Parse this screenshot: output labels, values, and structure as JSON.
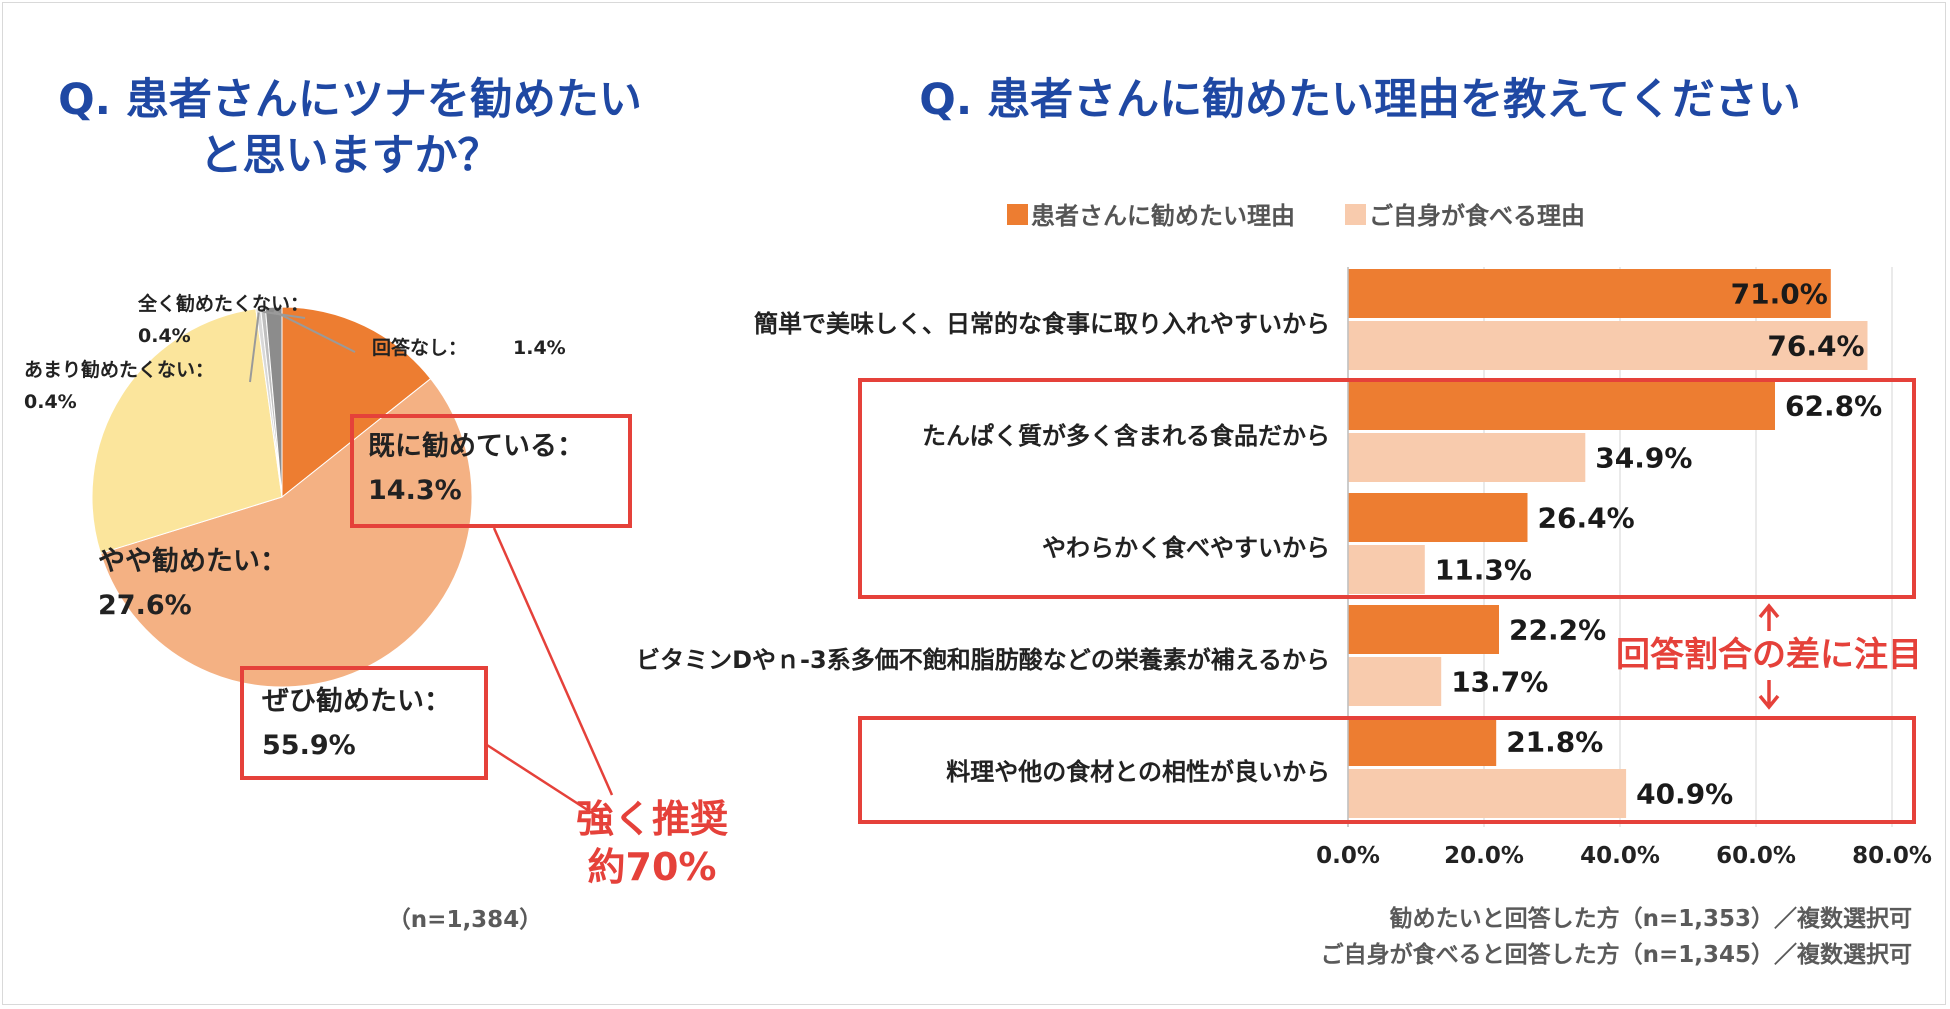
{
  "colors": {
    "title": "#1f48a3",
    "primary_bar": "#ed7d31",
    "secondary_bar": "#f8cbad",
    "highlight": "#e5413a",
    "pie_already": "#ed7d31",
    "pie_definitely": "#f4b183",
    "pie_somewhat": "#fbe59c",
    "pie_not_much": "#d9d9d9",
    "pie_not_at_all": "#bfbfbf",
    "pie_no_answer": "#8c8c8c"
  },
  "chart_data": [
    {
      "type": "pie",
      "title": "Q. 患者さんにツナを勧めたい\nと思いますか？",
      "title_lines": [
        "Q. 患者さんにツナを勧めたい",
        "と思いますか？"
      ],
      "slices": [
        {
          "name": "既に勧めている：",
          "value": 14.3,
          "value_label": "14.3%"
        },
        {
          "name": "ぜひ勧めたい：",
          "value": 55.9,
          "value_label": "55.9%"
        },
        {
          "name": "やや勧めたい：",
          "value": 27.6,
          "value_label": "27.6%"
        },
        {
          "name": "あまり勧めたくない：",
          "value": 0.4,
          "value_label": "0.4%"
        },
        {
          "name": "全く勧めたくない：",
          "value": 0.4,
          "value_label": "0.4%"
        },
        {
          "name": "回答なし：",
          "value": 1.4,
          "value_label": "1.4%"
        }
      ],
      "annotation_lines": [
        "強く推奨",
        "約70%"
      ],
      "sample_note": "（n=1,384）"
    },
    {
      "type": "bar",
      "orientation": "horizontal",
      "title": "Q. 患者さんに勧めたい理由を教えてください",
      "categories": [
        "簡単で美味しく、日常的な食事に取り入れやすいから",
        "たんぱく質が多く含まれる食品だから",
        "やわらかく食べやすいから",
        "ビタミンDやｎ-3系多価不飽和脂肪酸などの栄養素が補えるから",
        "料理や他の食材との相性が良いから"
      ],
      "series": [
        {
          "name": "患者さんに勧めたい理由",
          "values": [
            71.0,
            62.8,
            26.4,
            22.2,
            21.8
          ]
        },
        {
          "name": "ご自身が食べる理由",
          "values": [
            76.4,
            34.9,
            11.3,
            13.7,
            40.9
          ]
        }
      ],
      "value_labels": [
        [
          "71.0%",
          "62.8%",
          "26.4%",
          "22.2%",
          "21.8%"
        ],
        [
          "76.4%",
          "34.9%",
          "11.3%",
          "13.7%",
          "40.9%"
        ]
      ],
      "xlim": [
        0,
        80
      ],
      "xticks": [
        "0.0%",
        "20.0%",
        "40.0%",
        "60.0%",
        "80.0%"
      ],
      "grid": true,
      "legend": "top",
      "annotation": "回答割合の差に注目",
      "highlight_groups": [
        [
          1,
          2
        ],
        [
          4
        ]
      ],
      "notes": [
        "勧めたいと回答した方（n=1,353）／複数選択可",
        "ご自身が食べると回答した方（n=1,345）／複数選択可"
      ]
    }
  ]
}
